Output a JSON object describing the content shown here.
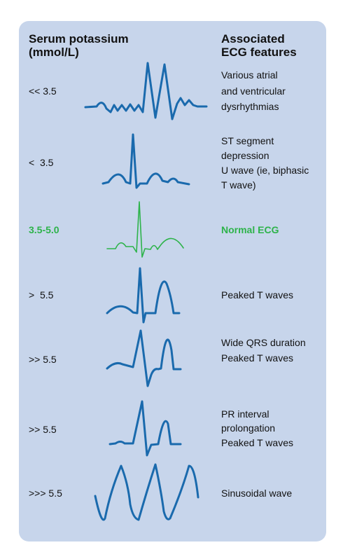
{
  "header": {
    "left": [
      "Serum potassium",
      "(mmol/L)"
    ],
    "right": [
      "Associated",
      "ECG features"
    ]
  },
  "rows": [
    {
      "level": "<< 3.5",
      "features": [
        "Various atrial",
        "and ventricular",
        "dysrhythmias"
      ]
    },
    {
      "level": "<  3.5",
      "features": [
        "ST segment",
        "depression",
        "U wave (ie, biphasic",
        "T wave)"
      ]
    },
    {
      "level": "3.5-5.0",
      "features": [
        "Normal ECG"
      ]
    },
    {
      "level": ">  5.5",
      "features": [
        "Peaked T waves"
      ]
    },
    {
      "level": ">> 5.5",
      "features": [
        "Wide QRS duration",
        "Peaked T waves"
      ]
    },
    {
      "level": ">> 5.5",
      "features": [
        "PR interval",
        "prolongation",
        "Peaked T waves"
      ]
    },
    {
      "level": ">>> 5.5",
      "features": [
        "Sinusoidal wave"
      ]
    }
  ]
}
